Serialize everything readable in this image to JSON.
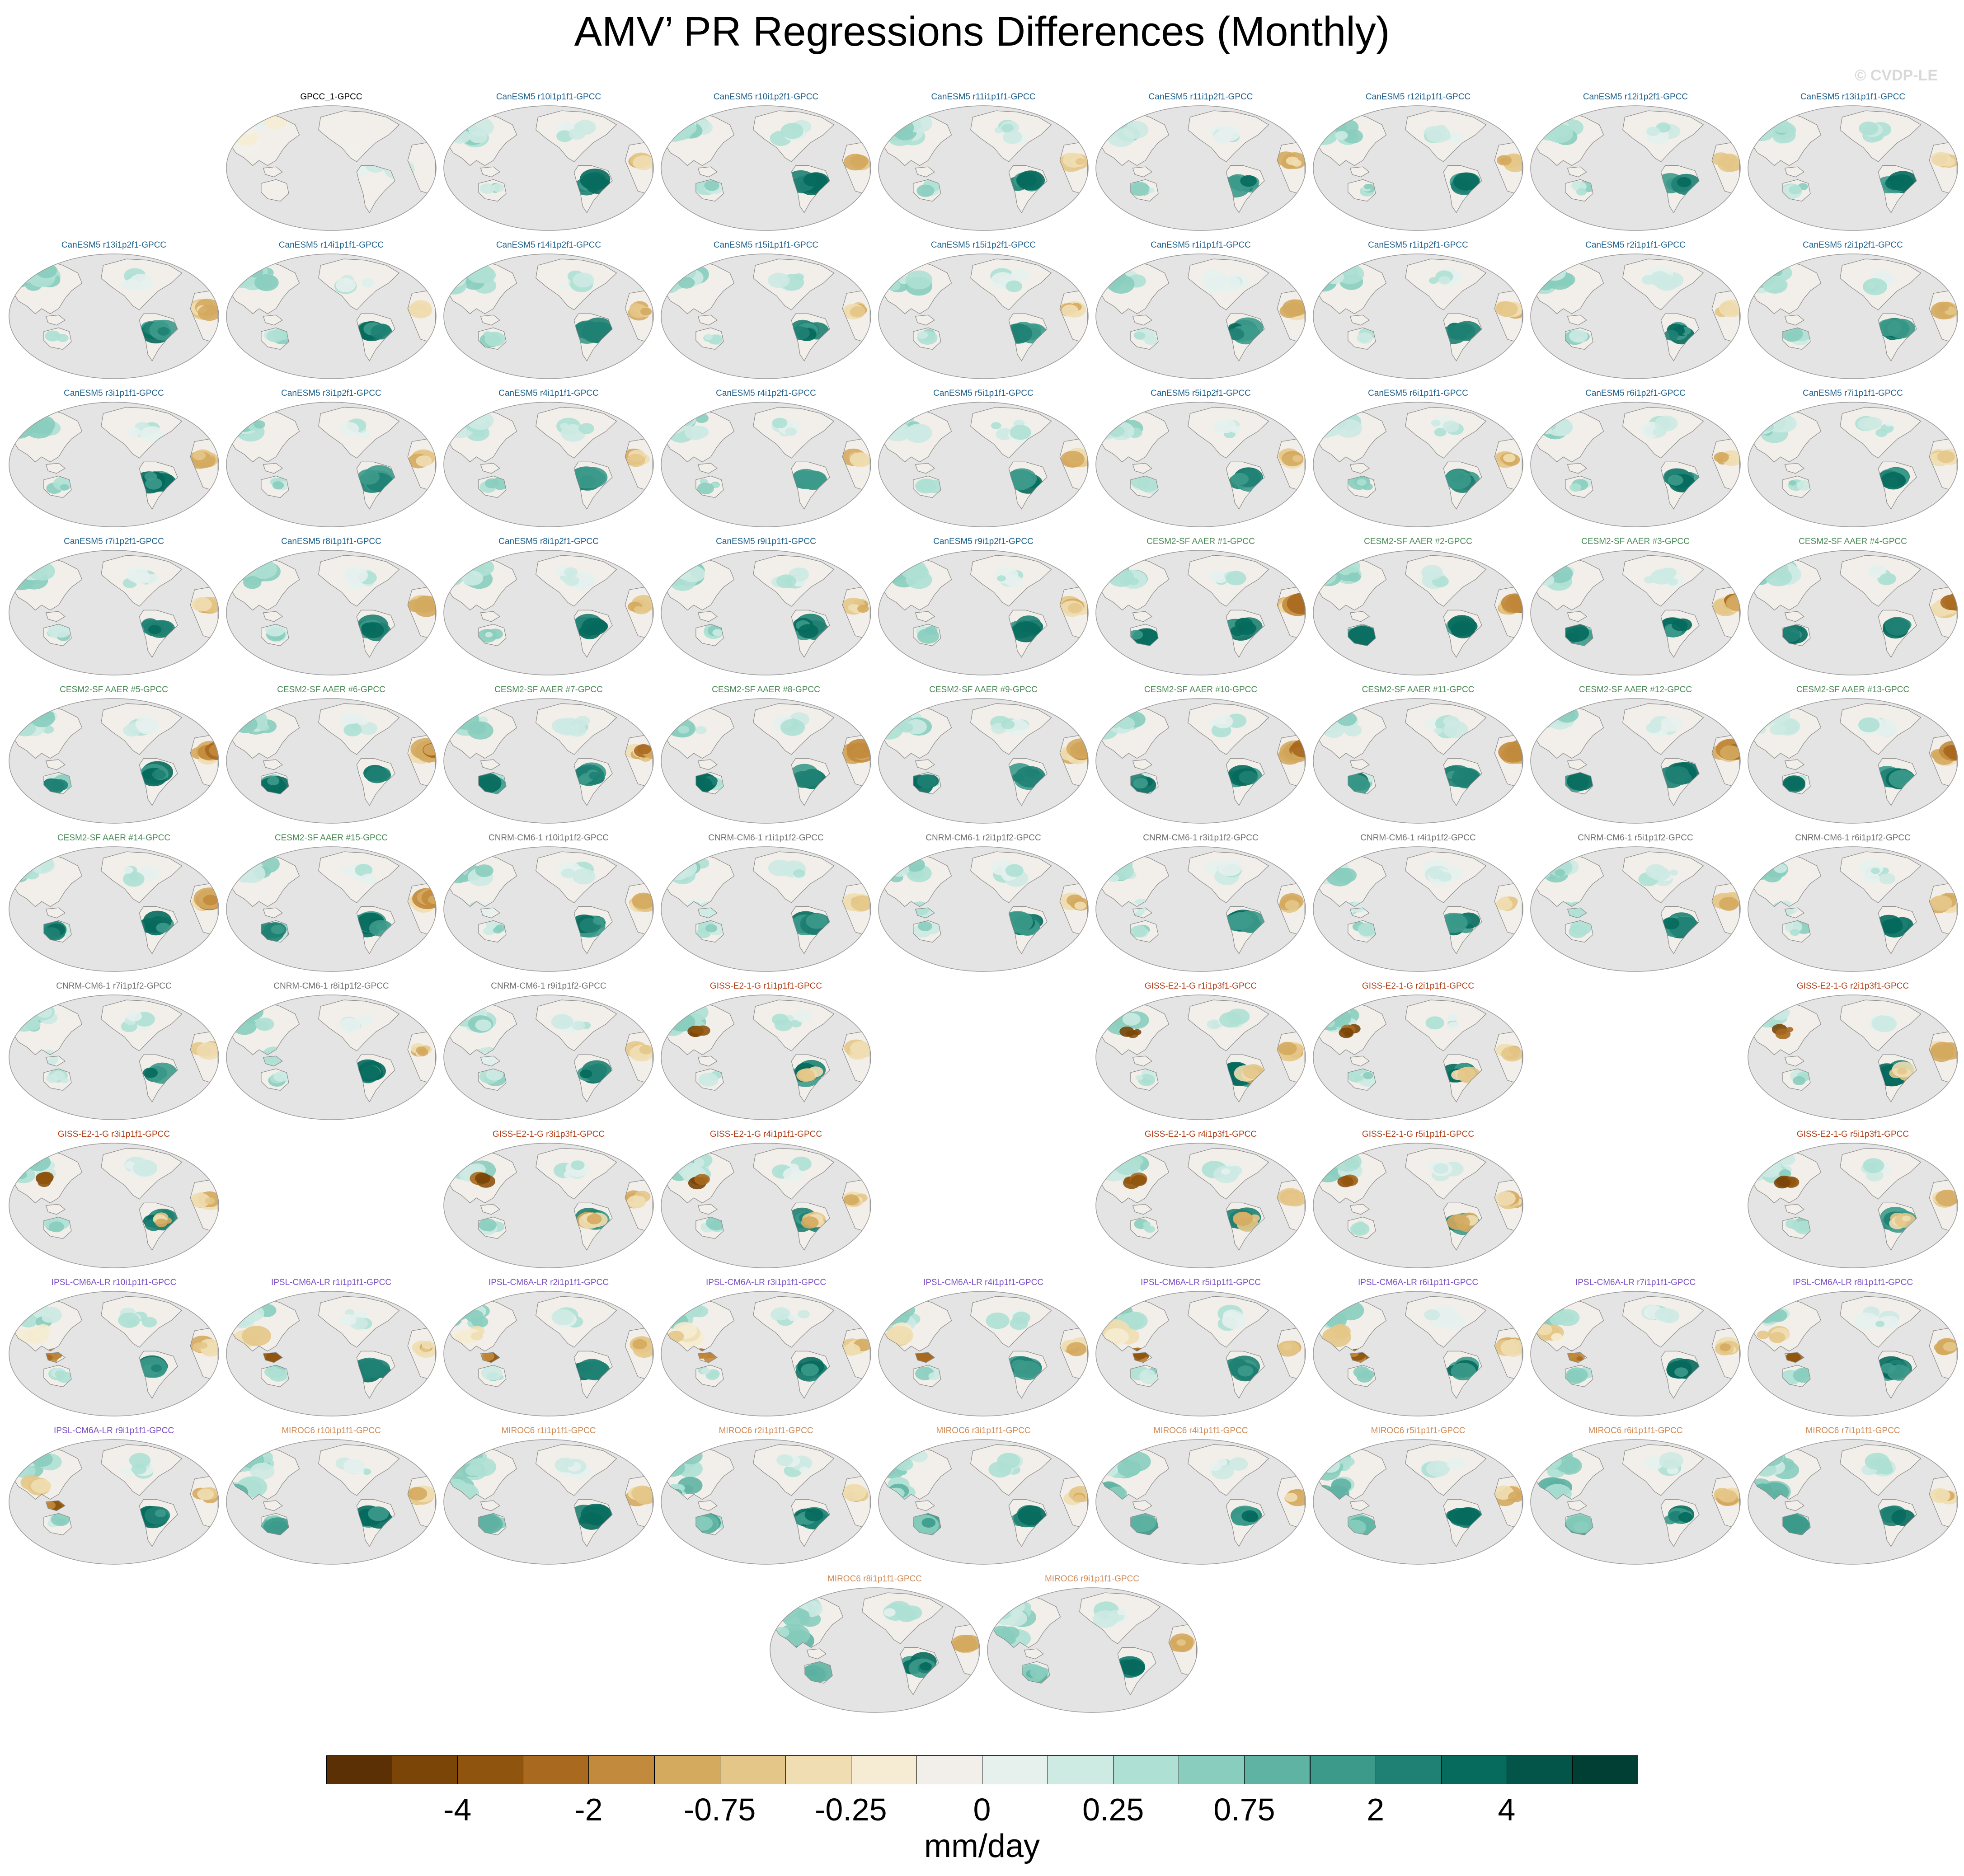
{
  "title": "AMV’ PR Regressions Differences (Monthly)",
  "copyright": "© CVDP-LE",
  "group_colors": {
    "obs": "#000000",
    "CanESM5": "#1b5f8c",
    "CESM2-SF AAER": "#4a8a57",
    "CNRM-CM6-1": "#6f6f6f",
    "GISS-E2-1-G": "#b03a12",
    "IPSL-CM6A-LR": "#7a4fc4",
    "MIROC6": "#d08a55"
  },
  "map": {
    "projection": "Robinson, Pacific-centered",
    "ocean_fill": "#e4e4e4",
    "coastline_color": "#888888"
  },
  "grid_columns": 9,
  "panels": [
    {
      "title": "GPCC_1-GPCC",
      "group": "obs",
      "row": 0,
      "col": 1,
      "pattern": 0
    },
    {
      "title": "CanESM5 r10i1p1f1-GPCC",
      "group": "CanESM5",
      "row": 0,
      "col": 2,
      "pattern": 1
    },
    {
      "title": "CanESM5 r10i1p2f1-GPCC",
      "group": "CanESM5",
      "row": 0,
      "col": 3,
      "pattern": 1
    },
    {
      "title": "CanESM5 r11i1p1f1-GPCC",
      "group": "CanESM5",
      "row": 0,
      "col": 4,
      "pattern": 1
    },
    {
      "title": "CanESM5 r11i1p2f1-GPCC",
      "group": "CanESM5",
      "row": 0,
      "col": 5,
      "pattern": 1
    },
    {
      "title": "CanESM5 r12i1p1f1-GPCC",
      "group": "CanESM5",
      "row": 0,
      "col": 6,
      "pattern": 1
    },
    {
      "title": "CanESM5 r12i1p2f1-GPCC",
      "group": "CanESM5",
      "row": 0,
      "col": 7,
      "pattern": 1
    },
    {
      "title": "CanESM5 r13i1p1f1-GPCC",
      "group": "CanESM5",
      "row": 0,
      "col": 8,
      "pattern": 1
    },
    {
      "title": "CanESM5 r13i1p2f1-GPCC",
      "group": "CanESM5",
      "row": 1,
      "col": 0,
      "pattern": 1
    },
    {
      "title": "CanESM5 r14i1p1f1-GPCC",
      "group": "CanESM5",
      "row": 1,
      "col": 1,
      "pattern": 1
    },
    {
      "title": "CanESM5 r14i1p2f1-GPCC",
      "group": "CanESM5",
      "row": 1,
      "col": 2,
      "pattern": 1
    },
    {
      "title": "CanESM5 r15i1p1f1-GPCC",
      "group": "CanESM5",
      "row": 1,
      "col": 3,
      "pattern": 1
    },
    {
      "title": "CanESM5 r15i1p2f1-GPCC",
      "group": "CanESM5",
      "row": 1,
      "col": 4,
      "pattern": 1
    },
    {
      "title": "CanESM5 r1i1p1f1-GPCC",
      "group": "CanESM5",
      "row": 1,
      "col": 5,
      "pattern": 1
    },
    {
      "title": "CanESM5 r1i1p2f1-GPCC",
      "group": "CanESM5",
      "row": 1,
      "col": 6,
      "pattern": 1
    },
    {
      "title": "CanESM5 r2i1p1f1-GPCC",
      "group": "CanESM5",
      "row": 1,
      "col": 7,
      "pattern": 1
    },
    {
      "title": "CanESM5 r2i1p2f1-GPCC",
      "group": "CanESM5",
      "row": 1,
      "col": 8,
      "pattern": 1
    },
    {
      "title": "CanESM5 r3i1p1f1-GPCC",
      "group": "CanESM5",
      "row": 2,
      "col": 0,
      "pattern": 1
    },
    {
      "title": "CanESM5 r3i1p2f1-GPCC",
      "group": "CanESM5",
      "row": 2,
      "col": 1,
      "pattern": 1
    },
    {
      "title": "CanESM5 r4i1p1f1-GPCC",
      "group": "CanESM5",
      "row": 2,
      "col": 2,
      "pattern": 1
    },
    {
      "title": "CanESM5 r4i1p2f1-GPCC",
      "group": "CanESM5",
      "row": 2,
      "col": 3,
      "pattern": 1
    },
    {
      "title": "CanESM5 r5i1p1f1-GPCC",
      "group": "CanESM5",
      "row": 2,
      "col": 4,
      "pattern": 1
    },
    {
      "title": "CanESM5 r5i1p2f1-GPCC",
      "group": "CanESM5",
      "row": 2,
      "col": 5,
      "pattern": 1
    },
    {
      "title": "CanESM5 r6i1p1f1-GPCC",
      "group": "CanESM5",
      "row": 2,
      "col": 6,
      "pattern": 1
    },
    {
      "title": "CanESM5 r6i1p2f1-GPCC",
      "group": "CanESM5",
      "row": 2,
      "col": 7,
      "pattern": 1
    },
    {
      "title": "CanESM5 r7i1p1f1-GPCC",
      "group": "CanESM5",
      "row": 2,
      "col": 8,
      "pattern": 1
    },
    {
      "title": "CanESM5 r7i1p2f1-GPCC",
      "group": "CanESM5",
      "row": 3,
      "col": 0,
      "pattern": 1
    },
    {
      "title": "CanESM5 r8i1p1f1-GPCC",
      "group": "CanESM5",
      "row": 3,
      "col": 1,
      "pattern": 1
    },
    {
      "title": "CanESM5 r8i1p2f1-GPCC",
      "group": "CanESM5",
      "row": 3,
      "col": 2,
      "pattern": 1
    },
    {
      "title": "CanESM5 r9i1p1f1-GPCC",
      "group": "CanESM5",
      "row": 3,
      "col": 3,
      "pattern": 1
    },
    {
      "title": "CanESM5 r9i1p2f1-GPCC",
      "group": "CanESM5",
      "row": 3,
      "col": 4,
      "pattern": 1
    },
    {
      "title": "CESM2-SF AAER #1-GPCC",
      "group": "CESM2-SF AAER",
      "row": 3,
      "col": 5,
      "pattern": 2
    },
    {
      "title": "CESM2-SF AAER #2-GPCC",
      "group": "CESM2-SF AAER",
      "row": 3,
      "col": 6,
      "pattern": 2
    },
    {
      "title": "CESM2-SF AAER #3-GPCC",
      "group": "CESM2-SF AAER",
      "row": 3,
      "col": 7,
      "pattern": 2
    },
    {
      "title": "CESM2-SF AAER #4-GPCC",
      "group": "CESM2-SF AAER",
      "row": 3,
      "col": 8,
      "pattern": 2
    },
    {
      "title": "CESM2-SF AAER #5-GPCC",
      "group": "CESM2-SF AAER",
      "row": 4,
      "col": 0,
      "pattern": 2
    },
    {
      "title": "CESM2-SF AAER #6-GPCC",
      "group": "CESM2-SF AAER",
      "row": 4,
      "col": 1,
      "pattern": 2
    },
    {
      "title": "CESM2-SF AAER #7-GPCC",
      "group": "CESM2-SF AAER",
      "row": 4,
      "col": 2,
      "pattern": 2
    },
    {
      "title": "CESM2-SF AAER #8-GPCC",
      "group": "CESM2-SF AAER",
      "row": 4,
      "col": 3,
      "pattern": 2
    },
    {
      "title": "CESM2-SF AAER #9-GPCC",
      "group": "CESM2-SF AAER",
      "row": 4,
      "col": 4,
      "pattern": 2
    },
    {
      "title": "CESM2-SF AAER #10-GPCC",
      "group": "CESM2-SF AAER",
      "row": 4,
      "col": 5,
      "pattern": 2
    },
    {
      "title": "CESM2-SF AAER #11-GPCC",
      "group": "CESM2-SF AAER",
      "row": 4,
      "col": 6,
      "pattern": 2
    },
    {
      "title": "CESM2-SF AAER #12-GPCC",
      "group": "CESM2-SF AAER",
      "row": 4,
      "col": 7,
      "pattern": 2
    },
    {
      "title": "CESM2-SF AAER #13-GPCC",
      "group": "CESM2-SF AAER",
      "row": 4,
      "col": 8,
      "pattern": 2
    },
    {
      "title": "CESM2-SF AAER #14-GPCC",
      "group": "CESM2-SF AAER",
      "row": 5,
      "col": 0,
      "pattern": 2
    },
    {
      "title": "CESM2-SF AAER #15-GPCC",
      "group": "CESM2-SF AAER",
      "row": 5,
      "col": 1,
      "pattern": 2
    },
    {
      "title": "CNRM-CM6-1 r10i1p1f2-GPCC",
      "group": "CNRM-CM6-1",
      "row": 5,
      "col": 2,
      "pattern": 3
    },
    {
      "title": "CNRM-CM6-1 r1i1p1f2-GPCC",
      "group": "CNRM-CM6-1",
      "row": 5,
      "col": 3,
      "pattern": 3
    },
    {
      "title": "CNRM-CM6-1 r2i1p1f2-GPCC",
      "group": "CNRM-CM6-1",
      "row": 5,
      "col": 4,
      "pattern": 3
    },
    {
      "title": "CNRM-CM6-1 r3i1p1f2-GPCC",
      "group": "CNRM-CM6-1",
      "row": 5,
      "col": 5,
      "pattern": 3
    },
    {
      "title": "CNRM-CM6-1 r4i1p1f2-GPCC",
      "group": "CNRM-CM6-1",
      "row": 5,
      "col": 6,
      "pattern": 3
    },
    {
      "title": "CNRM-CM6-1 r5i1p1f2-GPCC",
      "group": "CNRM-CM6-1",
      "row": 5,
      "col": 7,
      "pattern": 3
    },
    {
      "title": "CNRM-CM6-1 r6i1p1f2-GPCC",
      "group": "CNRM-CM6-1",
      "row": 5,
      "col": 8,
      "pattern": 3
    },
    {
      "title": "CNRM-CM6-1 r7i1p1f2-GPCC",
      "group": "CNRM-CM6-1",
      "row": 6,
      "col": 0,
      "pattern": 3
    },
    {
      "title": "CNRM-CM6-1 r8i1p1f2-GPCC",
      "group": "CNRM-CM6-1",
      "row": 6,
      "col": 1,
      "pattern": 3
    },
    {
      "title": "CNRM-CM6-1 r9i1p1f2-GPCC",
      "group": "CNRM-CM6-1",
      "row": 6,
      "col": 2,
      "pattern": 3
    },
    {
      "title": "GISS-E2-1-G r1i1p1f1-GPCC",
      "group": "GISS-E2-1-G",
      "row": 6,
      "col": 3,
      "pattern": 4
    },
    {
      "title": "GISS-E2-1-G r1i1p3f1-GPCC",
      "group": "GISS-E2-1-G",
      "row": 6,
      "col": 5,
      "pattern": 4
    },
    {
      "title": "GISS-E2-1-G r2i1p1f1-GPCC",
      "group": "GISS-E2-1-G",
      "row": 6,
      "col": 6,
      "pattern": 4
    },
    {
      "title": "GISS-E2-1-G r2i1p3f1-GPCC",
      "group": "GISS-E2-1-G",
      "row": 6,
      "col": 8,
      "pattern": 4
    },
    {
      "title": "GISS-E2-1-G r3i1p1f1-GPCC",
      "group": "GISS-E2-1-G",
      "row": 7,
      "col": 0,
      "pattern": 4
    },
    {
      "title": "GISS-E2-1-G r3i1p3f1-GPCC",
      "group": "GISS-E2-1-G",
      "row": 7,
      "col": 2,
      "pattern": 4
    },
    {
      "title": "GISS-E2-1-G r4i1p1f1-GPCC",
      "group": "GISS-E2-1-G",
      "row": 7,
      "col": 3,
      "pattern": 4
    },
    {
      "title": "GISS-E2-1-G r4i1p3f1-GPCC",
      "group": "GISS-E2-1-G",
      "row": 7,
      "col": 5,
      "pattern": 4
    },
    {
      "title": "GISS-E2-1-G r5i1p1f1-GPCC",
      "group": "GISS-E2-1-G",
      "row": 7,
      "col": 6,
      "pattern": 4
    },
    {
      "title": "GISS-E2-1-G r5i1p3f1-GPCC",
      "group": "GISS-E2-1-G",
      "row": 7,
      "col": 8,
      "pattern": 4
    },
    {
      "title": "IPSL-CM6A-LR r10i1p1f1-GPCC",
      "group": "IPSL-CM6A-LR",
      "row": 8,
      "col": 0,
      "pattern": 5
    },
    {
      "title": "IPSL-CM6A-LR r1i1p1f1-GPCC",
      "group": "IPSL-CM6A-LR",
      "row": 8,
      "col": 1,
      "pattern": 5
    },
    {
      "title": "IPSL-CM6A-LR r2i1p1f1-GPCC",
      "group": "IPSL-CM6A-LR",
      "row": 8,
      "col": 2,
      "pattern": 5
    },
    {
      "title": "IPSL-CM6A-LR r3i1p1f1-GPCC",
      "group": "IPSL-CM6A-LR",
      "row": 8,
      "col": 3,
      "pattern": 5
    },
    {
      "title": "IPSL-CM6A-LR r4i1p1f1-GPCC",
      "group": "IPSL-CM6A-LR",
      "row": 8,
      "col": 4,
      "pattern": 5
    },
    {
      "title": "IPSL-CM6A-LR r5i1p1f1-GPCC",
      "group": "IPSL-CM6A-LR",
      "row": 8,
      "col": 5,
      "pattern": 5
    },
    {
      "title": "IPSL-CM6A-LR r6i1p1f1-GPCC",
      "group": "IPSL-CM6A-LR",
      "row": 8,
      "col": 6,
      "pattern": 5
    },
    {
      "title": "IPSL-CM6A-LR r7i1p1f1-GPCC",
      "group": "IPSL-CM6A-LR",
      "row": 8,
      "col": 7,
      "pattern": 5
    },
    {
      "title": "IPSL-CM6A-LR r8i1p1f1-GPCC",
      "group": "IPSL-CM6A-LR",
      "row": 8,
      "col": 8,
      "pattern": 5
    },
    {
      "title": "IPSL-CM6A-LR r9i1p1f1-GPCC",
      "group": "IPSL-CM6A-LR",
      "row": 9,
      "col": 0,
      "pattern": 5
    },
    {
      "title": "MIROC6 r10i1p1f1-GPCC",
      "group": "MIROC6",
      "row": 9,
      "col": 1,
      "pattern": 6
    },
    {
      "title": "MIROC6 r1i1p1f1-GPCC",
      "group": "MIROC6",
      "row": 9,
      "col": 2,
      "pattern": 6
    },
    {
      "title": "MIROC6 r2i1p1f1-GPCC",
      "group": "MIROC6",
      "row": 9,
      "col": 3,
      "pattern": 6
    },
    {
      "title": "MIROC6 r3i1p1f1-GPCC",
      "group": "MIROC6",
      "row": 9,
      "col": 4,
      "pattern": 6
    },
    {
      "title": "MIROC6 r4i1p1f1-GPCC",
      "group": "MIROC6",
      "row": 9,
      "col": 5,
      "pattern": 6
    },
    {
      "title": "MIROC6 r5i1p1f1-GPCC",
      "group": "MIROC6",
      "row": 9,
      "col": 6,
      "pattern": 6
    },
    {
      "title": "MIROC6 r6i1p1f1-GPCC",
      "group": "MIROC6",
      "row": 9,
      "col": 7,
      "pattern": 6
    },
    {
      "title": "MIROC6 r7i1p1f1-GPCC",
      "group": "MIROC6",
      "row": 9,
      "col": 8,
      "pattern": 6
    },
    {
      "title": "MIROC6 r8i1p1f1-GPCC",
      "group": "MIROC6",
      "row": 10,
      "col": 3.5,
      "pattern": 6
    },
    {
      "title": "MIROC6 r9i1p1f1-GPCC",
      "group": "MIROC6",
      "row": 10,
      "col": 4.5,
      "pattern": 6
    }
  ],
  "colorbar": {
    "colors": [
      "#5a3004",
      "#7a4507",
      "#8f540d",
      "#a9691f",
      "#c28a3c",
      "#d4aa5f",
      "#e4c788",
      "#f0deb2",
      "#f5ecd3",
      "#f2efea",
      "#e6f1ee",
      "#cdeae3",
      "#aee0d4",
      "#88cdbe",
      "#5fb3a3",
      "#3c9a8b",
      "#1f8173",
      "#066a5d",
      "#03554a",
      "#013f35"
    ],
    "tick_labels": [
      "-4",
      "-2",
      "-0.75",
      "-0.25",
      "0",
      "0.25",
      "0.75",
      "2",
      "4"
    ],
    "tick_boundaries": [
      2,
      4,
      6,
      8,
      10,
      12,
      14,
      16,
      18
    ],
    "units": "mm/day"
  }
}
